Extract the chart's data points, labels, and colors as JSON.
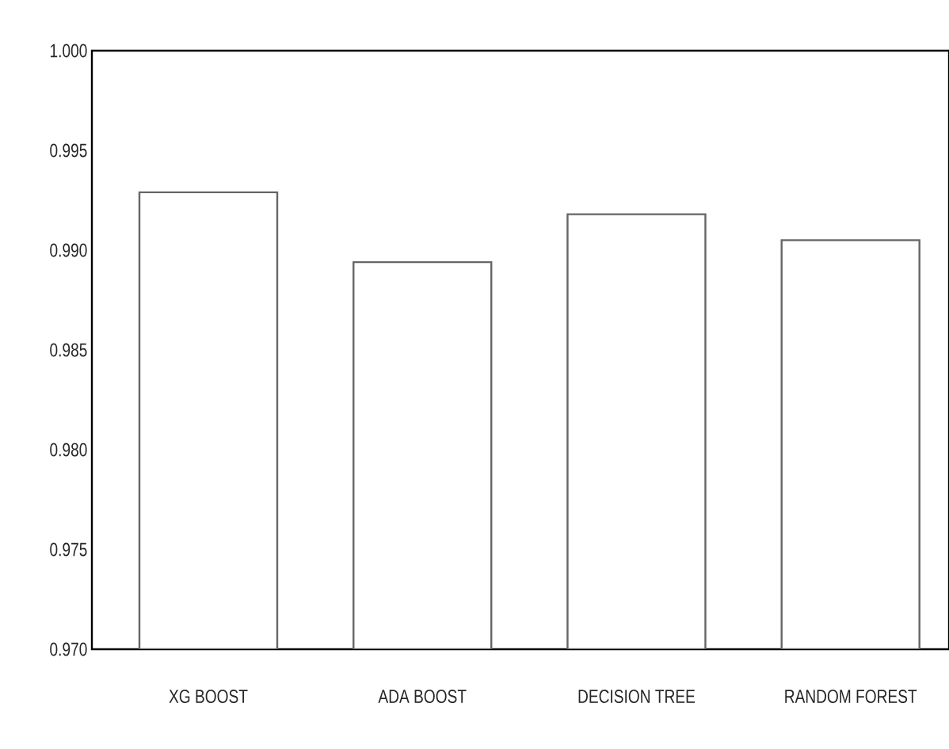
{
  "chart_data": {
    "type": "bar",
    "categories": [
      "XG BOOST",
      "ADA BOOST",
      "DECISION TREE",
      "RANDOM FOREST"
    ],
    "values": [
      0.9929,
      0.9894,
      0.9918,
      0.9905
    ],
    "color": "#ffffff",
    "ylim": [
      0.97,
      1.0
    ],
    "yticks": [
      {
        "value": 0.97,
        "label": "0.970"
      },
      {
        "value": 0.975,
        "label": "0.975"
      },
      {
        "value": 0.98,
        "label": "0.980"
      },
      {
        "value": 0.985,
        "label": "0.985"
      },
      {
        "value": 0.99,
        "label": "0.990"
      },
      {
        "value": 0.995,
        "label": "0.995"
      },
      {
        "value": 1.0,
        "label": "1.000"
      }
    ],
    "tick_labels": true
  }
}
